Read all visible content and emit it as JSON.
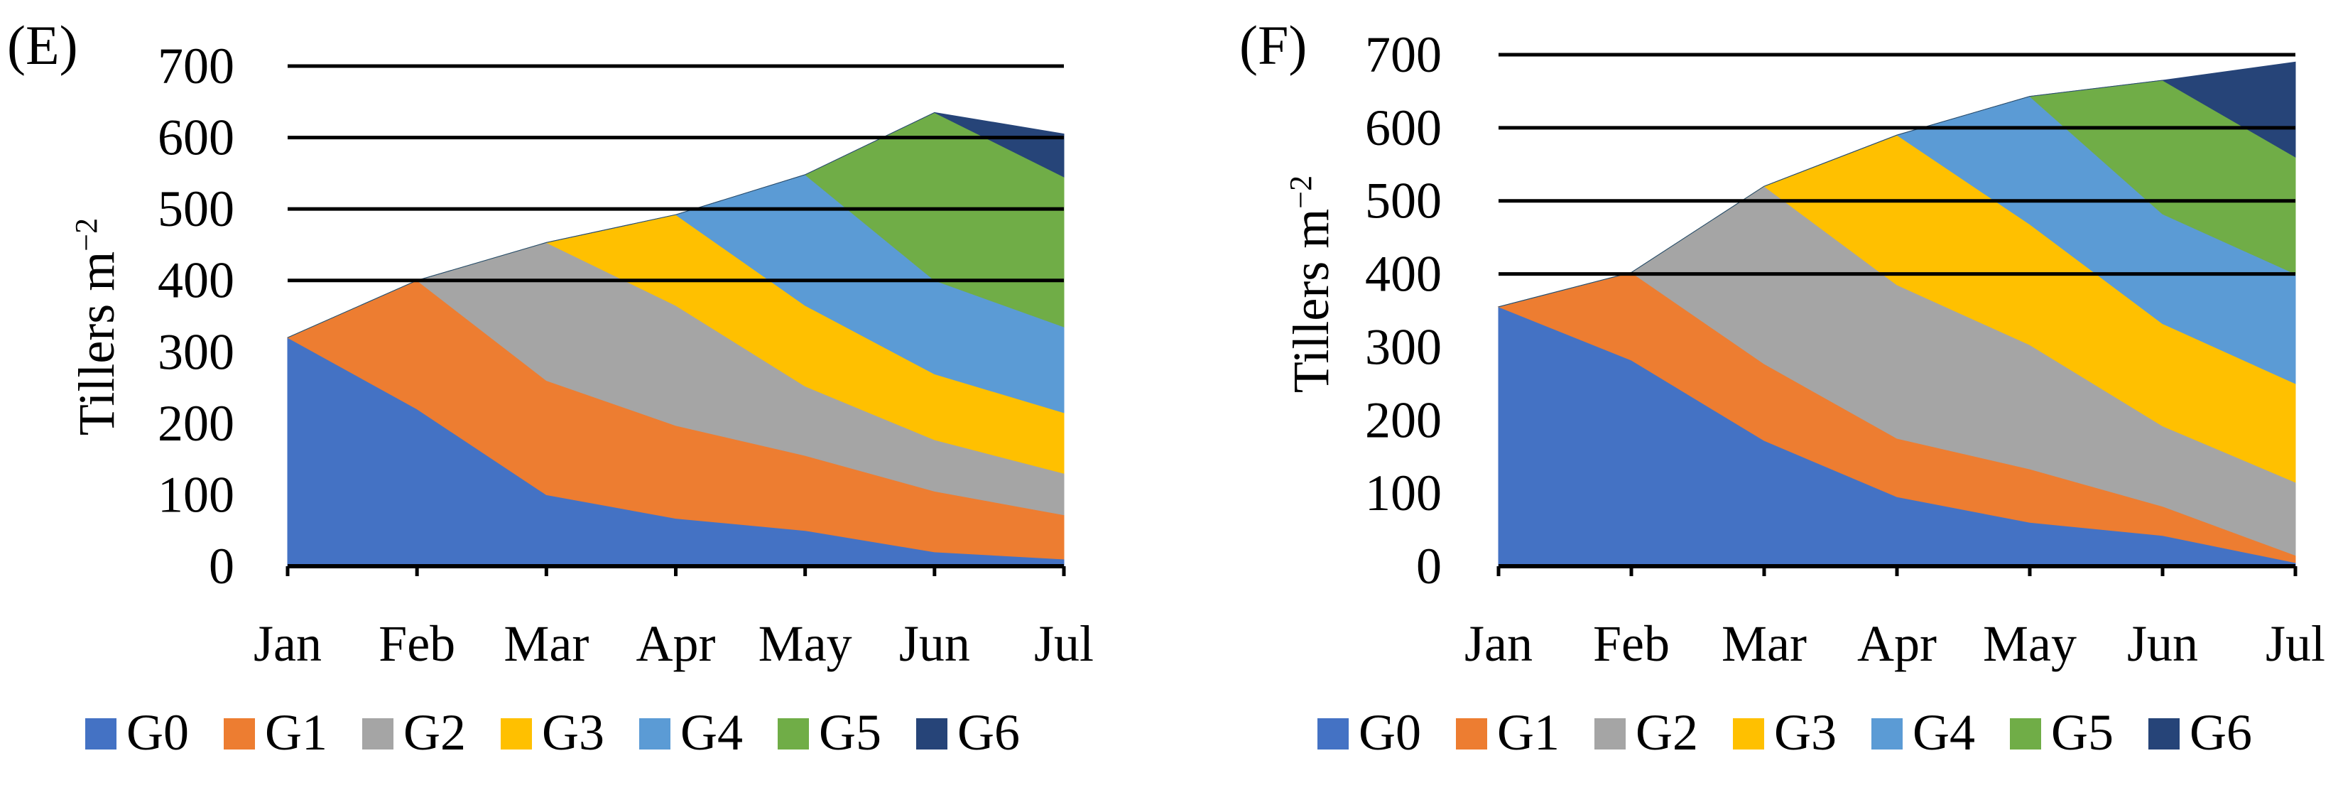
{
  "chart_data": [
    {
      "panel": "(E)",
      "type": "area",
      "stacked": true,
      "categories": [
        "Jan",
        "Feb",
        "Mar",
        "Apr",
        "May",
        "Jun",
        "Jul"
      ],
      "ylabel": "Tillers m",
      "ylabel_superscript": "−2",
      "xlabel": "",
      "ylim": [
        0,
        700
      ],
      "yticks": [
        0,
        100,
        200,
        300,
        400,
        500,
        600,
        700
      ],
      "gridlines": [
        400,
        500,
        600,
        700
      ],
      "series": [
        {
          "name": "G0",
          "color": "#4472C4",
          "values": [
            320,
            220,
            100,
            67,
            50,
            20,
            10
          ]
        },
        {
          "name": "G1",
          "color": "#ED7D31",
          "values": [
            0,
            180,
            160,
            130,
            105,
            85,
            62
          ]
        },
        {
          "name": "G2",
          "color": "#A5A5A5",
          "values": [
            0,
            0,
            193,
            168,
            97,
            72,
            58
          ]
        },
        {
          "name": "G3",
          "color": "#FFC000",
          "values": [
            0,
            0,
            0,
            127,
            113,
            92,
            85
          ]
        },
        {
          "name": "G4",
          "color": "#5B9BD5",
          "values": [
            0,
            0,
            0,
            0,
            183,
            131,
            120
          ]
        },
        {
          "name": "G5",
          "color": "#70AD47",
          "values": [
            0,
            0,
            0,
            0,
            0,
            235,
            210
          ]
        },
        {
          "name": "G6",
          "color": "#264478",
          "values": [
            0,
            0,
            0,
            0,
            0,
            0,
            60
          ]
        }
      ]
    },
    {
      "panel": "(F)",
      "type": "area",
      "stacked": true,
      "categories": [
        "Jan",
        "Feb",
        "Mar",
        "Apr",
        "May",
        "Jun",
        "Jul"
      ],
      "ylabel": "Tillers m",
      "ylabel_superscript": "−2",
      "xlabel": "",
      "ylim": [
        0,
        700
      ],
      "yticks": [
        0,
        100,
        200,
        300,
        400,
        500,
        600,
        700
      ],
      "gridlines": [
        400,
        500,
        600,
        700
      ],
      "series": [
        {
          "name": "G0",
          "color": "#4472C4",
          "values": [
            355,
            282,
            172,
            95,
            60,
            42,
            5
          ]
        },
        {
          "name": "G1",
          "color": "#ED7D31",
          "values": [
            0,
            120,
            105,
            80,
            73,
            40,
            10
          ]
        },
        {
          "name": "G2",
          "color": "#A5A5A5",
          "values": [
            0,
            0,
            243,
            210,
            170,
            110,
            100
          ]
        },
        {
          "name": "G3",
          "color": "#FFC000",
          "values": [
            0,
            0,
            0,
            205,
            165,
            140,
            135
          ]
        },
        {
          "name": "G4",
          "color": "#5B9BD5",
          "values": [
            0,
            0,
            0,
            0,
            175,
            150,
            150
          ]
        },
        {
          "name": "G5",
          "color": "#70AD47",
          "values": [
            0,
            0,
            0,
            0,
            0,
            183,
            160
          ]
        },
        {
          "name": "G6",
          "color": "#264478",
          "values": [
            0,
            0,
            0,
            0,
            0,
            0,
            130
          ]
        }
      ]
    }
  ]
}
